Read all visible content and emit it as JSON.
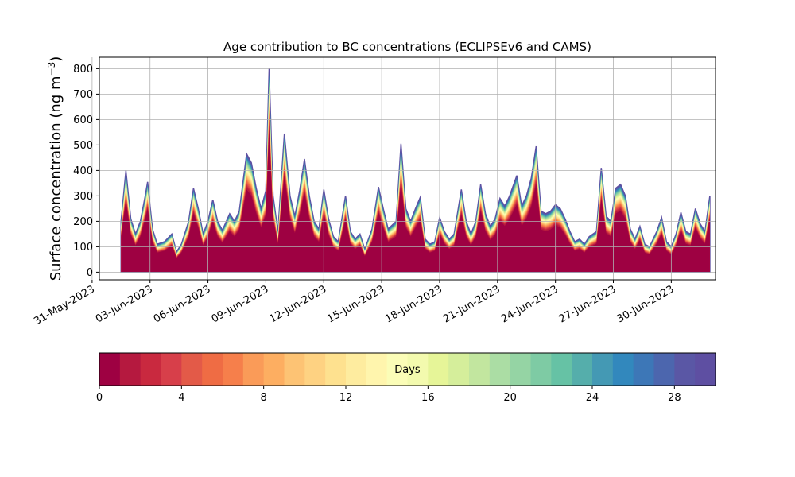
{
  "chart_data": {
    "type": "area",
    "title": "Age contribution to BC concentrations (ECLIPSEv6 and CAMS)",
    "ylabel": "Surface concentration (ng m",
    "ylabel_sup": "−3",
    "ylabel_close": ")",
    "xlabel": "",
    "stacked": true,
    "grid": true,
    "ylim": [
      -30,
      845
    ],
    "xlim": [
      "2023-05-31T09:00",
      "2023-07-02T07:00"
    ],
    "yticks": [
      0,
      100,
      200,
      300,
      400,
      500,
      600,
      700,
      800
    ],
    "xticks": [
      "2023-05-31",
      "2023-06-03",
      "2023-06-06",
      "2023-06-09",
      "2023-06-12",
      "2023-06-15",
      "2023-06-18",
      "2023-06-21",
      "2023-06-24",
      "2023-06-27",
      "2023-06-30"
    ],
    "xtick_labels": [
      "31-May-2023",
      "03-Jun-2023",
      "06-Jun-2023",
      "09-Jun-2023",
      "12-Jun-2023",
      "15-Jun-2023",
      "18-Jun-2023",
      "21-Jun-2023",
      "24-Jun-2023",
      "27-Jun-2023",
      "30-Jun-2023"
    ],
    "series_note": "30 stacked layers by age (days 0-30); values are total and youngest-layer fraction",
    "total": [
      [
        "2023-06-01T12:00",
        200
      ],
      [
        "2023-06-01T18:00",
        400
      ],
      [
        "2023-06-02T00:00",
        210
      ],
      [
        "2023-06-02T06:00",
        150
      ],
      [
        "2023-06-02T12:00",
        200
      ],
      [
        "2023-06-02T18:00",
        300
      ],
      [
        "2023-06-02T21:00",
        355
      ],
      [
        "2023-06-03T03:00",
        170
      ],
      [
        "2023-06-03T09:00",
        110
      ],
      [
        "2023-06-03T18:00",
        120
      ],
      [
        "2023-06-04T03:00",
        150
      ],
      [
        "2023-06-04T09:00",
        80
      ],
      [
        "2023-06-04T15:00",
        110
      ],
      [
        "2023-06-05T00:00",
        200
      ],
      [
        "2023-06-05T06:00",
        330
      ],
      [
        "2023-06-05T12:00",
        250
      ],
      [
        "2023-06-05T18:00",
        150
      ],
      [
        "2023-06-06T00:00",
        200
      ],
      [
        "2023-06-06T06:00",
        285
      ],
      [
        "2023-06-06T12:00",
        200
      ],
      [
        "2023-06-06T18:00",
        165
      ],
      [
        "2023-06-07T03:00",
        230
      ],
      [
        "2023-06-07T09:00",
        200
      ],
      [
        "2023-06-07T15:00",
        240
      ],
      [
        "2023-06-08T00:00",
        465
      ],
      [
        "2023-06-08T06:00",
        430
      ],
      [
        "2023-06-08T12:00",
        330
      ],
      [
        "2023-06-08T18:00",
        250
      ],
      [
        "2023-06-09T00:00",
        320
      ],
      [
        "2023-06-09T04:00",
        800
      ],
      [
        "2023-06-09T09:00",
        300
      ],
      [
        "2023-06-09T15:00",
        160
      ],
      [
        "2023-06-09T23:00",
        545
      ],
      [
        "2023-06-10T06:00",
        300
      ],
      [
        "2023-06-10T12:00",
        220
      ],
      [
        "2023-06-10T18:00",
        320
      ],
      [
        "2023-06-11T00:00",
        445
      ],
      [
        "2023-06-11T06:00",
        300
      ],
      [
        "2023-06-11T12:00",
        200
      ],
      [
        "2023-06-11T18:00",
        170
      ],
      [
        "2023-06-12T00:00",
        325
      ],
      [
        "2023-06-12T06:00",
        210
      ],
      [
        "2023-06-12T12:00",
        140
      ],
      [
        "2023-06-12T18:00",
        120
      ],
      [
        "2023-06-13T03:00",
        300
      ],
      [
        "2023-06-13T09:00",
        160
      ],
      [
        "2023-06-13T15:00",
        130
      ],
      [
        "2023-06-13T21:00",
        150
      ],
      [
        "2023-06-14T03:00",
        90
      ],
      [
        "2023-06-14T12:00",
        170
      ],
      [
        "2023-06-14T20:00",
        335
      ],
      [
        "2023-06-15T02:00",
        250
      ],
      [
        "2023-06-15T08:00",
        170
      ],
      [
        "2023-06-15T18:00",
        200
      ],
      [
        "2023-06-16T00:00",
        505
      ],
      [
        "2023-06-16T06:00",
        250
      ],
      [
        "2023-06-16T12:00",
        200
      ],
      [
        "2023-06-16T18:00",
        250
      ],
      [
        "2023-06-17T00:00",
        295
      ],
      [
        "2023-06-17T06:00",
        130
      ],
      [
        "2023-06-17T12:00",
        110
      ],
      [
        "2023-06-17T18:00",
        120
      ],
      [
        "2023-06-18T00:00",
        215
      ],
      [
        "2023-06-18T06:00",
        160
      ],
      [
        "2023-06-18T12:00",
        130
      ],
      [
        "2023-06-18T18:00",
        150
      ],
      [
        "2023-06-19T03:00",
        325
      ],
      [
        "2023-06-19T09:00",
        200
      ],
      [
        "2023-06-19T15:00",
        150
      ],
      [
        "2023-06-19T21:00",
        200
      ],
      [
        "2023-06-20T03:00",
        345
      ],
      [
        "2023-06-20T09:00",
        230
      ],
      [
        "2023-06-20T15:00",
        180
      ],
      [
        "2023-06-20T21:00",
        210
      ],
      [
        "2023-06-21T03:00",
        290
      ],
      [
        "2023-06-21T09:00",
        260
      ],
      [
        "2023-06-21T15:00",
        300
      ],
      [
        "2023-06-22T00:00",
        380
      ],
      [
        "2023-06-22T06:00",
        260
      ],
      [
        "2023-06-22T12:00",
        300
      ],
      [
        "2023-06-22T18:00",
        370
      ],
      [
        "2023-06-23T00:00",
        495
      ],
      [
        "2023-06-23T06:00",
        240
      ],
      [
        "2023-06-23T12:00",
        230
      ],
      [
        "2023-06-23T18:00",
        240
      ],
      [
        "2023-06-24T00:00",
        265
      ],
      [
        "2023-06-24T06:00",
        250
      ],
      [
        "2023-06-24T12:00",
        210
      ],
      [
        "2023-06-24T18:00",
        160
      ],
      [
        "2023-06-25T00:00",
        120
      ],
      [
        "2023-06-25T06:00",
        130
      ],
      [
        "2023-06-25T12:00",
        110
      ],
      [
        "2023-06-25T18:00",
        140
      ],
      [
        "2023-06-26T03:00",
        160
      ],
      [
        "2023-06-26T09:00",
        410
      ],
      [
        "2023-06-26T15:00",
        220
      ],
      [
        "2023-06-26T21:00",
        200
      ],
      [
        "2023-06-27T03:00",
        330
      ],
      [
        "2023-06-27T09:00",
        345
      ],
      [
        "2023-06-27T15:00",
        300
      ],
      [
        "2023-06-27T21:00",
        170
      ],
      [
        "2023-06-28T03:00",
        130
      ],
      [
        "2023-06-28T09:00",
        180
      ],
      [
        "2023-06-28T15:00",
        110
      ],
      [
        "2023-06-28T21:00",
        100
      ],
      [
        "2023-06-29T06:00",
        160
      ],
      [
        "2023-06-29T12:00",
        215
      ],
      [
        "2023-06-29T18:00",
        120
      ],
      [
        "2023-06-30T00:00",
        100
      ],
      [
        "2023-06-30T06:00",
        150
      ],
      [
        "2023-06-30T12:00",
        235
      ],
      [
        "2023-06-30T18:00",
        160
      ],
      [
        "2023-07-01T00:00",
        150
      ],
      [
        "2023-07-01T06:00",
        250
      ],
      [
        "2023-07-01T12:00",
        190
      ],
      [
        "2023-07-01T18:00",
        160
      ],
      [
        "2023-07-02T00:00",
        300
      ]
    ],
    "youngest_fraction": 0.7,
    "colorbar": {
      "label": "Days",
      "min": 0,
      "max": 30,
      "levels": 30,
      "ticks": [
        0,
        4,
        8,
        12,
        16,
        20,
        24,
        28
      ],
      "colors": [
        "#9e0142",
        "#b5193f",
        "#c9293f",
        "#d73f4a",
        "#e35a48",
        "#ef6c44",
        "#f67f4b",
        "#fa9b58",
        "#fdae61",
        "#fdc374",
        "#fed282",
        "#fee18f",
        "#feec9f",
        "#fff5ad",
        "#fbfdb7",
        "#f3faae",
        "#e6f598",
        "#d5ee9b",
        "#c2e69f",
        "#abdda4",
        "#95d4a4",
        "#7ecba4",
        "#66c2a5",
        "#55aeab",
        "#4499b4",
        "#3288bd",
        "#3d77b7",
        "#4c66ae",
        "#5a57a5",
        "#5e4fa2"
      ]
    }
  }
}
